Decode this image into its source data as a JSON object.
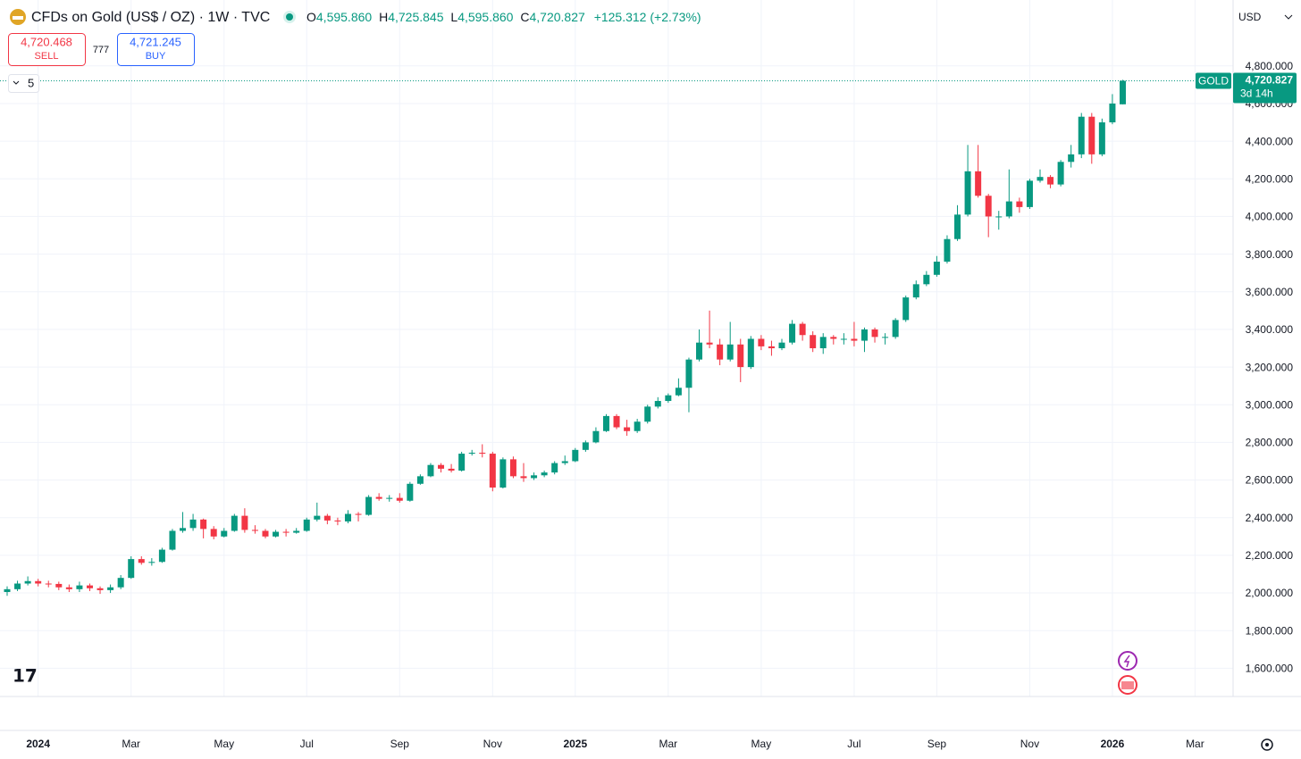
{
  "header": {
    "title": "CFDs on Gold (US$ / OZ) · 1W · TVC",
    "o_label": "O",
    "open": "4,595.860",
    "h_label": "H",
    "high": "4,725.845",
    "l_label": "L",
    "low": "4,595.860",
    "c_label": "C",
    "close": "4,720.827",
    "change": "+125.312 (+2.73%)",
    "currency": "USD"
  },
  "trade": {
    "sell_price": "4,720.468",
    "sell_label": "SELL",
    "spread": "777",
    "buy_price": "4,721.245",
    "buy_label": "BUY"
  },
  "indicators": {
    "count": "5"
  },
  "price_tag": {
    "symbol": "GOLD",
    "price": "4,720.827",
    "countdown": "3d 14h"
  },
  "chart_data": {
    "type": "candlestick",
    "up_color": "#089981",
    "down_color": "#f23645",
    "grid": true,
    "ylim": [
      1450,
      5150
    ],
    "yticks": [
      {
        "value": 1600,
        "label": "1,600.000"
      },
      {
        "value": 1800,
        "label": "1,800.000"
      },
      {
        "value": 2000,
        "label": "2,000.000"
      },
      {
        "value": 2200,
        "label": "2,200.000"
      },
      {
        "value": 2400,
        "label": "2,400.000"
      },
      {
        "value": 2600,
        "label": "2,600.000"
      },
      {
        "value": 2800,
        "label": "2,800.000"
      },
      {
        "value": 3000,
        "label": "3,000.000"
      },
      {
        "value": 3200,
        "label": "3,200.000"
      },
      {
        "value": 3400,
        "label": "3,400.000"
      },
      {
        "value": 3600,
        "label": "3,600.000"
      },
      {
        "value": 3800,
        "label": "3,800.000"
      },
      {
        "value": 4000,
        "label": "4,000.000"
      },
      {
        "value": 4200,
        "label": "4,200.000"
      },
      {
        "value": 4400,
        "label": "4,400.000"
      },
      {
        "value": 4600,
        "label": "4,600.000"
      },
      {
        "value": 4800,
        "label": "4,800.000"
      }
    ],
    "categories": [
      null,
      null,
      null,
      "2024",
      null,
      null,
      null,
      null,
      null,
      null,
      null,
      null,
      "Mar",
      null,
      null,
      null,
      null,
      null,
      null,
      null,
      null,
      "May",
      null,
      null,
      null,
      null,
      null,
      null,
      null,
      "Jul",
      null,
      null,
      null,
      null,
      null,
      null,
      null,
      null,
      "Sep",
      null,
      null,
      null,
      null,
      null,
      null,
      null,
      null,
      "Nov",
      null,
      null,
      null,
      null,
      null,
      null,
      null,
      "2025",
      null,
      null,
      null,
      null,
      null,
      null,
      null,
      null,
      "Mar",
      null,
      null,
      null,
      null,
      null,
      null,
      null,
      null,
      "May",
      null,
      null,
      null,
      null,
      null,
      null,
      null,
      null,
      "Jul",
      null,
      null,
      null,
      null,
      null,
      null,
      null,
      "Sep",
      null,
      null,
      null,
      null,
      null,
      null,
      null,
      null,
      "Nov",
      null,
      null,
      null,
      null,
      null,
      null,
      null,
      "2026",
      null
    ],
    "future_categories": [
      "Mar"
    ],
    "open": [
      2005,
      2020,
      2050,
      2063,
      2050,
      2048,
      2030,
      2020,
      2040,
      2025,
      2015,
      2030,
      2080,
      2180,
      2160,
      2165,
      2230,
      2330,
      2345,
      2390,
      2340,
      2300,
      2330,
      2410,
      2335,
      2330,
      2300,
      2325,
      2320,
      2330,
      2390,
      2410,
      2385,
      2380,
      2420,
      2415,
      2510,
      2500,
      2505,
      2490,
      2580,
      2620,
      2680,
      2660,
      2650,
      2740,
      2745,
      2740,
      2560,
      2710,
      2620,
      2610,
      2625,
      2640,
      2690,
      2700,
      2760,
      2800,
      2860,
      2940,
      2880,
      2860,
      2910,
      2990,
      3020,
      3050,
      3090,
      3240,
      3330,
      3320,
      3240,
      3320,
      3200,
      3350,
      3310,
      3300,
      3330,
      3430,
      3370,
      3300,
      3360,
      3350,
      3350,
      3340,
      3400,
      3360,
      3360,
      3450,
      3570,
      3640,
      3690,
      3760,
      3880,
      4010,
      4240,
      4110,
      4000,
      4000,
      4080,
      4050,
      4190,
      4210,
      4170,
      4290,
      4330,
      4530,
      4330,
      4500,
      4595.86
    ],
    "high": [
      2035,
      2065,
      2088,
      2075,
      2065,
      2060,
      2045,
      2060,
      2050,
      2035,
      2045,
      2095,
      2195,
      2195,
      2185,
      2240,
      2340,
      2430,
      2420,
      2395,
      2355,
      2345,
      2420,
      2450,
      2360,
      2340,
      2335,
      2340,
      2345,
      2400,
      2480,
      2420,
      2400,
      2440,
      2430,
      2520,
      2530,
      2520,
      2530,
      2590,
      2630,
      2690,
      2690,
      2685,
      2750,
      2760,
      2790,
      2750,
      2720,
      2725,
      2690,
      2640,
      2650,
      2700,
      2730,
      2770,
      2810,
      2880,
      2950,
      2950,
      2920,
      2925,
      3000,
      3040,
      3060,
      3140,
      3250,
      3400,
      3500,
      3350,
      3440,
      3350,
      3365,
      3370,
      3340,
      3350,
      3450,
      3440,
      3390,
      3380,
      3370,
      3380,
      3440,
      3410,
      3410,
      3380,
      3460,
      3580,
      3660,
      3710,
      3790,
      3900,
      4060,
      4380,
      4380,
      4120,
      4030,
      4250,
      4100,
      4200,
      4250,
      4220,
      4300,
      4380,
      4550,
      4550,
      4520,
      4650,
      4725.845
    ],
    "low": [
      1985,
      2010,
      2040,
      2035,
      2030,
      2015,
      2005,
      2005,
      2010,
      1995,
      2000,
      2020,
      2075,
      2150,
      2145,
      2160,
      2225,
      2320,
      2330,
      2290,
      2285,
      2295,
      2325,
      2320,
      2315,
      2290,
      2295,
      2300,
      2315,
      2325,
      2380,
      2365,
      2360,
      2370,
      2380,
      2410,
      2490,
      2485,
      2480,
      2485,
      2575,
      2615,
      2640,
      2640,
      2645,
      2730,
      2720,
      2540,
      2555,
      2610,
      2590,
      2600,
      2615,
      2630,
      2680,
      2695,
      2750,
      2795,
      2855,
      2870,
      2835,
      2850,
      2900,
      2980,
      3010,
      3045,
      2960,
      3230,
      3300,
      3210,
      3230,
      3120,
      3190,
      3290,
      3260,
      3290,
      3320,
      3340,
      3280,
      3270,
      3320,
      3320,
      3310,
      3280,
      3330,
      3320,
      3350,
      3440,
      3560,
      3630,
      3680,
      3750,
      3870,
      4000,
      4100,
      3890,
      3930,
      3990,
      4020,
      4040,
      4180,
      4150,
      4160,
      4260,
      4310,
      4280,
      4320,
      4490,
      4595.86
    ],
    "close": [
      2020,
      2050,
      2063,
      2050,
      2048,
      2030,
      2020,
      2040,
      2025,
      2015,
      2030,
      2080,
      2180,
      2160,
      2165,
      2230,
      2330,
      2345,
      2390,
      2340,
      2300,
      2330,
      2410,
      2335,
      2330,
      2300,
      2325,
      2320,
      2330,
      2390,
      2410,
      2385,
      2380,
      2420,
      2415,
      2510,
      2500,
      2505,
      2490,
      2580,
      2620,
      2680,
      2660,
      2650,
      2740,
      2745,
      2740,
      2560,
      2710,
      2620,
      2610,
      2625,
      2640,
      2690,
      2700,
      2760,
      2800,
      2860,
      2940,
      2880,
      2860,
      2910,
      2990,
      3020,
      3050,
      3090,
      3240,
      3330,
      3320,
      3240,
      3320,
      3200,
      3350,
      3310,
      3300,
      3330,
      3430,
      3370,
      3300,
      3360,
      3350,
      3350,
      3340,
      3400,
      3360,
      3360,
      3450,
      3570,
      3640,
      3690,
      3760,
      3880,
      4010,
      4240,
      4110,
      4000,
      4000,
      4080,
      4050,
      4190,
      4210,
      4170,
      4290,
      4330,
      4530,
      4330,
      4500,
      4600,
      4720.827
    ]
  }
}
